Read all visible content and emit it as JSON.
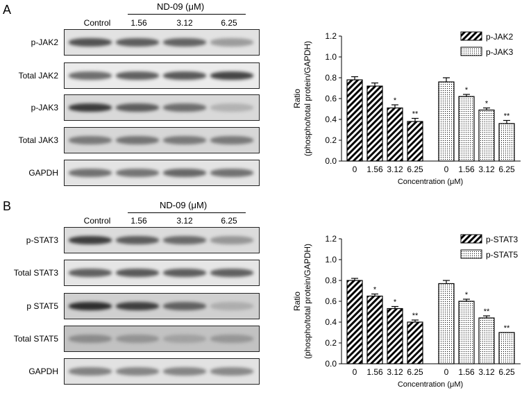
{
  "panels": [
    {
      "letter": "A",
      "treatment_label": "ND-09 (μM)",
      "lanes": [
        "Control",
        "1.56",
        "3.12",
        "6.25"
      ],
      "blots": [
        {
          "label": "p-JAK2",
          "bg": "#e2e2e2",
          "intensity": [
            0.78,
            0.72,
            0.68,
            0.35
          ]
        },
        {
          "label": "Total JAK2",
          "bg": "#ebebeb",
          "intensity": [
            0.62,
            0.7,
            0.74,
            0.86
          ]
        },
        {
          "label": "p-JAK3",
          "bg": "#d9d9d9",
          "intensity": [
            0.92,
            0.72,
            0.62,
            0.22
          ]
        },
        {
          "label": "Total JAK3",
          "bg": "#d7d7d7",
          "intensity": [
            0.55,
            0.58,
            0.55,
            0.55
          ]
        },
        {
          "label": "GAPDH",
          "bg": "#e4e4e4",
          "intensity": [
            0.6,
            0.58,
            0.66,
            0.6
          ]
        }
      ]
    },
    {
      "letter": "B",
      "treatment_label": "ND-09 (μM)",
      "lanes": [
        "Control",
        "1.56",
        "3.12",
        "6.25"
      ],
      "blots": [
        {
          "label": "p-STAT3",
          "bg": "#dcdcdc",
          "intensity": [
            0.9,
            0.72,
            0.64,
            0.38
          ]
        },
        {
          "label": "Total STAT3",
          "bg": "#e6e6e6",
          "intensity": [
            0.7,
            0.74,
            0.72,
            0.7
          ]
        },
        {
          "label": "p STAT5",
          "bg": "#d0d0d0",
          "intensity": [
            1.0,
            0.9,
            0.7,
            0.25
          ]
        },
        {
          "label": "Total STAT5",
          "bg": "#c2c2c2",
          "intensity": [
            0.45,
            0.4,
            0.32,
            0.38
          ]
        },
        {
          "label": "GAPDH",
          "bg": "#e2e2e2",
          "intensity": [
            0.5,
            0.48,
            0.48,
            0.46
          ]
        }
      ]
    }
  ],
  "chart_data": [
    {
      "type": "bar",
      "categories": [
        "0",
        "1.56",
        "3.12",
        "6.25"
      ],
      "xlabel": "Concentration (μM)",
      "ylabel_lines": [
        "Ratio",
        "(phospho/total protein/GAPDH)"
      ],
      "ylim": [
        0,
        1.2
      ],
      "yticks": [
        "0.0",
        "0.2",
        "0.4",
        "0.6",
        "0.8",
        "1.0",
        "1.2"
      ],
      "legend_position": "top-right",
      "series": [
        {
          "name": "p-JAK2",
          "pattern": "hatch",
          "values": [
            0.78,
            0.72,
            0.51,
            0.38
          ],
          "errors": [
            0.03,
            0.03,
            0.03,
            0.03
          ],
          "sig": [
            "",
            "",
            "*",
            "**"
          ]
        },
        {
          "name": "p-JAK3",
          "pattern": "dots",
          "values": [
            0.76,
            0.62,
            0.49,
            0.36
          ],
          "errors": [
            0.04,
            0.02,
            0.02,
            0.03
          ],
          "sig": [
            "",
            "*",
            "*",
            "**"
          ]
        }
      ]
    },
    {
      "type": "bar",
      "categories": [
        "0",
        "1.56",
        "3.12",
        "6.25"
      ],
      "xlabel": "Concentration (μM)",
      "ylabel_lines": [
        "Ratio",
        "(phospho/total protein/GAPDH)"
      ],
      "ylim": [
        0,
        1.2
      ],
      "yticks": [
        "0.0",
        "0.2",
        "0.4",
        "0.6",
        "0.8",
        "1.0",
        "1.2"
      ],
      "legend_position": "top-right",
      "series": [
        {
          "name": "p-STAT3",
          "pattern": "hatch",
          "values": [
            0.8,
            0.65,
            0.53,
            0.4
          ],
          "errors": [
            0.02,
            0.02,
            0.02,
            0.02
          ],
          "sig": [
            "",
            "*",
            "*",
            "**"
          ]
        },
        {
          "name": "p-STAT5",
          "pattern": "dots",
          "values": [
            0.77,
            0.6,
            0.44,
            0.3
          ],
          "errors": [
            0.03,
            0.02,
            0.02,
            0.0
          ],
          "sig": [
            "",
            "*",
            "**",
            "**"
          ]
        }
      ]
    }
  ]
}
